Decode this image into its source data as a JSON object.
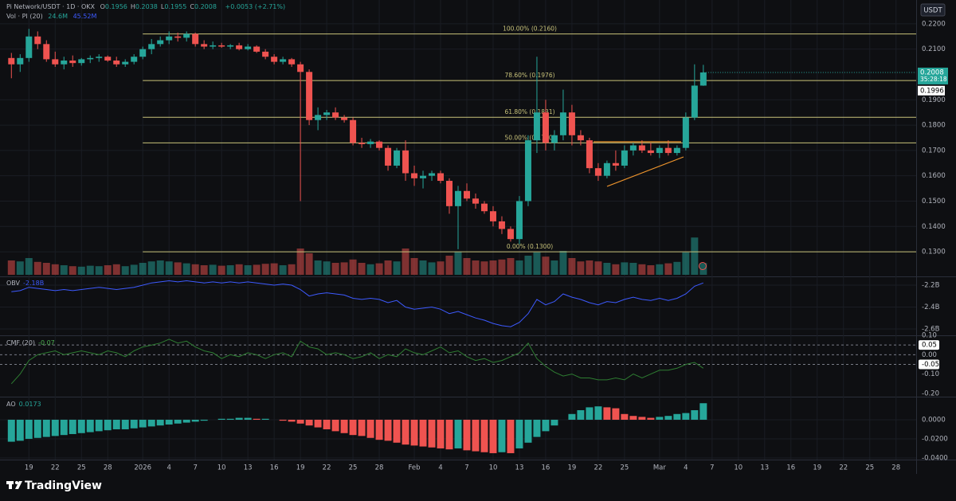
{
  "header": {
    "symbol": "Pi Network/USDT · 1D · OKX",
    "ohlc": [
      {
        "key": "O",
        "text": "0.1956"
      },
      {
        "key": "H",
        "text": "0.2038"
      },
      {
        "key": "L",
        "text": "0.1955"
      },
      {
        "key": "C",
        "text": "0.2008"
      }
    ],
    "change": "+0.0053 (+2.71%)",
    "volume_legend": "Vol · PI (20)",
    "volume_last": "24.6M",
    "volume_ma": "45.52M",
    "currency": "USDT",
    "brand": "TradingView"
  },
  "chart_data": [
    {
      "type": "candlestick",
      "title": "Pi Network/USDT",
      "xlim": [
        -1.3,
        103.3
      ],
      "xticks": [
        {
          "value": 2,
          "label": "19"
        },
        {
          "value": 5,
          "label": "22"
        },
        {
          "value": 8,
          "label": "25"
        },
        {
          "value": 11,
          "label": "28"
        },
        {
          "value": 15,
          "label": "2026"
        },
        {
          "value": 18,
          "label": "4"
        },
        {
          "value": 21,
          "label": "7"
        },
        {
          "value": 24,
          "label": "10"
        },
        {
          "value": 27,
          "label": "13"
        },
        {
          "value": 30,
          "label": "16"
        },
        {
          "value": 33,
          "label": "19"
        },
        {
          "value": 36,
          "label": "22"
        },
        {
          "value": 39,
          "label": "25"
        },
        {
          "value": 42,
          "label": "28"
        },
        {
          "value": 46,
          "label": "Feb"
        },
        {
          "value": 49,
          "label": "4"
        },
        {
          "value": 52,
          "label": "7"
        },
        {
          "value": 55,
          "label": "10"
        },
        {
          "value": 58,
          "label": "13"
        },
        {
          "value": 61,
          "label": "16"
        },
        {
          "value": 64,
          "label": "19"
        },
        {
          "value": 67,
          "label": "22"
        },
        {
          "value": 70,
          "label": "25"
        },
        {
          "value": 74,
          "label": "Mar"
        },
        {
          "value": 77,
          "label": "4"
        },
        {
          "value": 80,
          "label": "7"
        },
        {
          "value": 83,
          "label": "10"
        },
        {
          "value": 86,
          "label": "13"
        },
        {
          "value": 89,
          "label": "16"
        },
        {
          "value": 92,
          "label": "19"
        },
        {
          "value": 95,
          "label": "22"
        },
        {
          "value": 98,
          "label": "25"
        },
        {
          "value": 101,
          "label": "28"
        }
      ],
      "ylim": [
        0.1209,
        0.2294
      ],
      "yticks": [
        {
          "value": 0.22,
          "label": "0.2200"
        },
        {
          "value": 0.21,
          "label": "0.2100"
        },
        {
          "value": 0.19,
          "label": "0.1900"
        },
        {
          "value": 0.18,
          "label": "0.1800"
        },
        {
          "value": 0.17,
          "label": "0.1700"
        },
        {
          "value": 0.16,
          "label": "0.1600"
        },
        {
          "value": 0.15,
          "label": "0.1500"
        },
        {
          "value": 0.14,
          "label": "0.1400"
        },
        {
          "value": 0.13,
          "label": "0.1300"
        }
      ],
      "grid": true,
      "up_color": "#26a69a",
      "down_color": "#ef5350",
      "open": [
        0.2065,
        0.204,
        0.2065,
        0.215,
        0.212,
        0.206,
        0.204,
        0.2055,
        0.2045,
        0.206,
        0.2065,
        0.207,
        0.2055,
        0.204,
        0.205,
        0.207,
        0.21,
        0.212,
        0.2135,
        0.215,
        0.2145,
        0.216,
        0.212,
        0.211,
        0.2115,
        0.211,
        0.2115,
        0.21,
        0.211,
        0.209,
        0.207,
        0.205,
        0.206,
        0.204,
        0.201,
        0.182,
        0.184,
        0.185,
        0.183,
        0.182,
        0.173,
        0.1725,
        0.1735,
        0.171,
        0.164,
        0.17,
        0.161,
        0.159,
        0.16,
        0.161,
        0.158,
        0.148,
        0.154,
        0.151,
        0.149,
        0.146,
        0.142,
        0.139,
        0.135,
        0.15,
        0.174,
        0.185,
        0.173,
        0.176,
        0.185,
        0.176,
        0.174,
        0.163,
        0.16,
        0.165,
        0.164,
        0.17,
        0.172,
        0.17,
        0.169,
        0.171,
        0.169,
        0.171,
        0.183,
        0.1956
      ],
      "high": [
        0.2085,
        0.208,
        0.218,
        0.217,
        0.2135,
        0.209,
        0.207,
        0.2075,
        0.2065,
        0.2075,
        0.208,
        0.2075,
        0.207,
        0.206,
        0.208,
        0.211,
        0.214,
        0.215,
        0.217,
        0.2165,
        0.217,
        0.2165,
        0.2135,
        0.213,
        0.2125,
        0.212,
        0.2125,
        0.212,
        0.2115,
        0.21,
        0.208,
        0.207,
        0.2065,
        0.205,
        0.202,
        0.187,
        0.186,
        0.187,
        0.184,
        0.183,
        0.175,
        0.1745,
        0.174,
        0.172,
        0.171,
        0.174,
        0.164,
        0.162,
        0.162,
        0.162,
        0.159,
        0.156,
        0.157,
        0.153,
        0.15,
        0.148,
        0.144,
        0.14,
        0.152,
        0.176,
        0.207,
        0.19,
        0.178,
        0.194,
        0.188,
        0.178,
        0.175,
        0.165,
        0.166,
        0.17,
        0.172,
        0.173,
        0.174,
        0.173,
        0.172,
        0.174,
        0.172,
        0.185,
        0.204,
        0.2038
      ],
      "low": [
        0.1985,
        0.201,
        0.205,
        0.21,
        0.205,
        0.203,
        0.202,
        0.203,
        0.2035,
        0.2045,
        0.205,
        0.205,
        0.203,
        0.203,
        0.204,
        0.206,
        0.208,
        0.211,
        0.212,
        0.213,
        0.213,
        0.211,
        0.21,
        0.21,
        0.2105,
        0.21,
        0.2095,
        0.2095,
        0.2085,
        0.206,
        0.204,
        0.204,
        0.203,
        0.15,
        0.18,
        0.178,
        0.182,
        0.182,
        0.181,
        0.172,
        0.171,
        0.171,
        0.17,
        0.162,
        0.163,
        0.158,
        0.156,
        0.155,
        0.158,
        0.157,
        0.145,
        0.131,
        0.15,
        0.147,
        0.145,
        0.14,
        0.137,
        0.134,
        0.133,
        0.148,
        0.169,
        0.17,
        0.17,
        0.174,
        0.172,
        0.172,
        0.161,
        0.158,
        0.159,
        0.162,
        0.163,
        0.168,
        0.169,
        0.168,
        0.167,
        0.168,
        0.168,
        0.17,
        0.182,
        0.1955
      ],
      "close": [
        0.204,
        0.2065,
        0.215,
        0.212,
        0.206,
        0.204,
        0.2055,
        0.2045,
        0.206,
        0.2065,
        0.207,
        0.2055,
        0.204,
        0.205,
        0.207,
        0.21,
        0.212,
        0.2135,
        0.215,
        0.2145,
        0.216,
        0.212,
        0.211,
        0.2115,
        0.211,
        0.2115,
        0.21,
        0.211,
        0.209,
        0.207,
        0.205,
        0.206,
        0.204,
        0.201,
        0.182,
        0.184,
        0.185,
        0.183,
        0.182,
        0.173,
        0.1725,
        0.1735,
        0.171,
        0.164,
        0.17,
        0.161,
        0.159,
        0.16,
        0.161,
        0.158,
        0.148,
        0.154,
        0.151,
        0.149,
        0.146,
        0.142,
        0.139,
        0.135,
        0.15,
        0.174,
        0.185,
        0.173,
        0.176,
        0.185,
        0.176,
        0.174,
        0.163,
        0.16,
        0.165,
        0.164,
        0.17,
        0.172,
        0.17,
        0.169,
        0.171,
        0.169,
        0.171,
        0.183,
        0.1956,
        0.2008
      ],
      "volume": {
        "name": "Vol",
        "values": [
          30,
          28,
          35,
          27,
          25,
          22,
          20,
          18,
          17,
          19,
          18,
          20,
          22,
          18,
          21,
          25,
          28,
          30,
          28,
          26,
          24,
          22,
          20,
          21,
          19,
          20,
          22,
          20,
          21,
          23,
          24,
          20,
          22,
          55,
          45,
          30,
          28,
          25,
          26,
          32,
          25,
          22,
          24,
          30,
          28,
          55,
          35,
          30,
          26,
          28,
          40,
          48,
          35,
          30,
          28,
          30,
          32,
          35,
          30,
          40,
          47,
          38,
          30,
          50,
          35,
          28,
          30,
          28,
          25,
          22,
          26,
          25,
          22,
          20,
          22,
          24,
          27,
          47,
          78,
          24.6
        ]
      },
      "levels": [
        {
          "value": 0.216,
          "label": "100.00% (0.2160)"
        },
        {
          "value": 0.1976,
          "label": "78.60% (0.1976)"
        },
        {
          "value": 0.1831,
          "label": "61.80% (0.1831)"
        },
        {
          "value": 0.173,
          "label": "50.00% (0.1730)"
        },
        {
          "value": 0.13,
          "label": "0.00% (0.1300)"
        }
      ],
      "level_color": "#c8c27a",
      "last_price": {
        "value": 0.2008,
        "label": "0.2008"
      },
      "countdown": "35:28:18",
      "marker_price": {
        "value": 0.1996,
        "label": "0.1996"
      }
    },
    {
      "type": "line",
      "title": "OBV",
      "legend_value": "-2.18B",
      "color": "#3d5afe",
      "ylim": [
        -2.651,
        -2.142
      ],
      "yticks": [
        {
          "value": -2.2,
          "label": "-2.2B"
        },
        {
          "value": -2.4,
          "label": "-2.4B"
        },
        {
          "value": -2.6,
          "label": "-2.6B"
        }
      ],
      "grid": true,
      "values": [
        -2.26,
        -2.25,
        -2.22,
        -2.23,
        -2.24,
        -2.25,
        -2.24,
        -2.25,
        -2.24,
        -2.23,
        -2.22,
        -2.23,
        -2.24,
        -2.23,
        -2.22,
        -2.2,
        -2.18,
        -2.17,
        -2.16,
        -2.17,
        -2.16,
        -2.17,
        -2.18,
        -2.17,
        -2.18,
        -2.17,
        -2.18,
        -2.17,
        -2.18,
        -2.19,
        -2.2,
        -2.19,
        -2.2,
        -2.24,
        -2.3,
        -2.28,
        -2.27,
        -2.28,
        -2.29,
        -2.32,
        -2.33,
        -2.32,
        -2.33,
        -2.36,
        -2.34,
        -2.4,
        -2.42,
        -2.41,
        -2.4,
        -2.42,
        -2.46,
        -2.44,
        -2.47,
        -2.5,
        -2.52,
        -2.55,
        -2.57,
        -2.58,
        -2.54,
        -2.46,
        -2.33,
        -2.38,
        -2.35,
        -2.28,
        -2.31,
        -2.33,
        -2.36,
        -2.38,
        -2.35,
        -2.36,
        -2.33,
        -2.31,
        -2.33,
        -2.34,
        -2.32,
        -2.34,
        -2.32,
        -2.28,
        -2.21,
        -2.18
      ]
    },
    {
      "type": "line",
      "title": "CMF (20)",
      "legend_value": "-0.07",
      "color": "#2e7d32",
      "ylim": [
        -0.2125,
        0.1
      ],
      "yticks": [
        {
          "value": 0.1,
          "label": "0.10"
        },
        {
          "value": 0.05,
          "label": "0.05"
        },
        {
          "value": 0,
          "label": "0.00"
        },
        {
          "value": -0.05,
          "label": "-0.05"
        },
        {
          "value": -0.1,
          "label": "-0.10"
        },
        {
          "value": -0.2,
          "label": "-0.20"
        }
      ],
      "grid": false,
      "levels": [
        0.05,
        0,
        -0.05
      ],
      "values": [
        -0.15,
        -0.1,
        -0.03,
        0.0,
        0.01,
        0.02,
        0.0,
        0.01,
        0.02,
        0.01,
        0.0,
        0.02,
        0.01,
        -0.01,
        0.02,
        0.04,
        0.05,
        0.06,
        0.08,
        0.06,
        0.07,
        0.04,
        0.02,
        0.01,
        -0.02,
        0.0,
        -0.01,
        0.01,
        0.0,
        -0.02,
        0.0,
        0.01,
        -0.01,
        0.07,
        0.04,
        0.03,
        0.0,
        0.01,
        0.0,
        -0.02,
        -0.01,
        0.01,
        -0.02,
        0.0,
        -0.01,
        0.03,
        0.01,
        0.0,
        0.02,
        0.04,
        0.01,
        0.02,
        -0.01,
        -0.03,
        -0.02,
        -0.04,
        -0.03,
        -0.01,
        0.01,
        0.06,
        -0.02,
        -0.06,
        -0.09,
        -0.11,
        -0.1,
        -0.12,
        -0.12,
        -0.13,
        -0.13,
        -0.12,
        -0.13,
        -0.1,
        -0.12,
        -0.1,
        -0.08,
        -0.08,
        -0.07,
        -0.05,
        -0.04,
        -0.07
      ]
    },
    {
      "type": "histogram",
      "title": "AO",
      "legend_value": "0.0173",
      "up_color": "#26a69a",
      "down_color": "#ef5350",
      "ylim": [
        -0.0417,
        0.0225
      ],
      "yticks": [
        {
          "value": 0,
          "label": "0.0000"
        },
        {
          "value": -0.02,
          "label": "-0.0200"
        },
        {
          "value": -0.04,
          "label": "-0.0400"
        }
      ],
      "grid": true,
      "values": [
        -0.023,
        -0.022,
        -0.02,
        -0.019,
        -0.018,
        -0.017,
        -0.016,
        -0.015,
        -0.014,
        -0.013,
        -0.012,
        -0.011,
        -0.01,
        -0.01,
        -0.009,
        -0.008,
        -0.007,
        -0.006,
        -0.005,
        -0.004,
        -0.003,
        -0.002,
        -0.001,
        0.0,
        0.001,
        0.001,
        0.002,
        0.002,
        0.001,
        0.001,
        0.0,
        -0.001,
        -0.002,
        -0.004,
        -0.006,
        -0.008,
        -0.01,
        -0.012,
        -0.014,
        -0.016,
        -0.017,
        -0.019,
        -0.021,
        -0.022,
        -0.024,
        -0.026,
        -0.027,
        -0.028,
        -0.029,
        -0.03,
        -0.031,
        -0.03,
        -0.032,
        -0.033,
        -0.034,
        -0.035,
        -0.034,
        -0.035,
        -0.03,
        -0.024,
        -0.018,
        -0.012,
        -0.006,
        0.0,
        0.006,
        0.01,
        0.013,
        0.014,
        0.013,
        0.012,
        0.006,
        0.004,
        0.003,
        0.002,
        0.003,
        0.004,
        0.006,
        0.007,
        0.01,
        0.0173
      ]
    }
  ]
}
